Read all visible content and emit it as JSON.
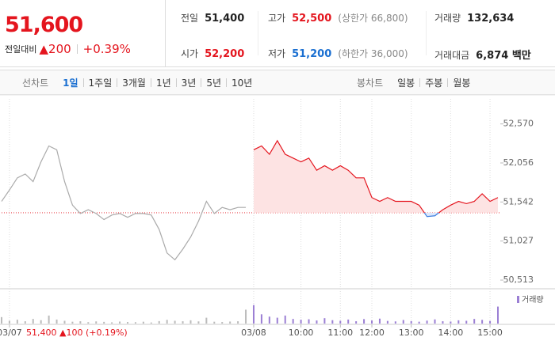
{
  "header": {
    "price": "51,600",
    "change_label": "전일대비",
    "change": "▲200",
    "change_rate": "+0.39%",
    "stats": [
      [
        {
          "label": "전일",
          "value": "51,400",
          "color": "#222222"
        },
        {
          "label": "고가",
          "value": "52,500",
          "note": "(상한가 66,800)",
          "color": "#e4151e"
        },
        {
          "label": "거래량",
          "value": "132,634",
          "color": "#222222"
        }
      ],
      [
        {
          "label": "시가",
          "value": "52,200",
          "color": "#e4151e"
        },
        {
          "label": "저가",
          "value": "51,200",
          "note": "(하한가 36,000)",
          "color": "#1a6fd1"
        },
        {
          "label": "거래대금",
          "value": "6,874 백만",
          "color": "#222222"
        }
      ]
    ]
  },
  "tabs": {
    "line": {
      "label": "선차트",
      "options": [
        "1일",
        "1주일",
        "3개월",
        "1년",
        "3년",
        "5년",
        "10년"
      ],
      "active": 0
    },
    "candle": {
      "label": "봉차트",
      "options": [
        "일봉",
        "주봉",
        "월봉"
      ]
    }
  },
  "chart_data": {
    "type": "line",
    "categories": [
      null,
      "03/07",
      null,
      null,
      null,
      null,
      null,
      null,
      null,
      null,
      null,
      null,
      null,
      null,
      null,
      null,
      null,
      null,
      null,
      null,
      null,
      null,
      null,
      null,
      null,
      null,
      null,
      null,
      null,
      null,
      null,
      null,
      "03/08",
      null,
      null,
      null,
      null,
      null,
      "10:00",
      null,
      null,
      null,
      null,
      "11:00",
      null,
      null,
      null,
      "12:00",
      null,
      null,
      null,
      null,
      "13:00",
      null,
      null,
      null,
      null,
      "14:00",
      null,
      null,
      null,
      null,
      "15:00",
      null
    ],
    "series": [
      {
        "color": "#aaaaaa",
        "values": [
          51550,
          51700,
          51860,
          51910,
          51810,
          52070,
          52280,
          52230,
          51810,
          51500,
          51390,
          51440,
          51390,
          51310,
          51370,
          51390,
          51340,
          51390,
          51390,
          51370,
          51180,
          50870,
          50780,
          50920,
          51080,
          51290,
          51550,
          51390,
          51470,
          51440,
          51470,
          51470,
          null,
          null,
          null,
          null,
          null,
          null,
          null,
          null,
          null,
          null,
          null,
          null,
          null,
          null,
          null,
          null,
          null,
          null,
          null,
          null,
          null,
          null,
          null,
          null,
          null,
          null,
          null,
          null,
          null,
          null,
          null,
          null
        ]
      },
      {
        "color": "#e4151e",
        "below_color": "#3b7de0",
        "fill": "#fde3e3",
        "below_fill": "#dde8fb",
        "values": [
          null,
          null,
          null,
          null,
          null,
          null,
          null,
          null,
          null,
          null,
          null,
          null,
          null,
          null,
          null,
          null,
          null,
          null,
          null,
          null,
          null,
          null,
          null,
          null,
          null,
          null,
          null,
          null,
          null,
          null,
          null,
          null,
          52230,
          52280,
          52170,
          52350,
          52170,
          52120,
          52070,
          52120,
          51960,
          52020,
          51960,
          52020,
          51960,
          51860,
          51860,
          51600,
          51550,
          51600,
          51550,
          51550,
          51550,
          51500,
          51350,
          51360,
          51440,
          51500,
          51550,
          51520,
          51550,
          51650,
          51550,
          51600
        ]
      },
      {
        "type": "bar",
        "axis": "y2",
        "color": "#bbbbbb",
        "values": [
          4200,
          1800,
          2500,
          1500,
          3000,
          2200,
          5200,
          2600,
          1800,
          1200,
          1500,
          900,
          1400,
          1100,
          800,
          1300,
          1000,
          900,
          1200,
          700,
          1600,
          2400,
          1800,
          1500,
          2100,
          1400,
          3800,
          1200,
          1000,
          1300,
          1500,
          9000,
          null,
          null,
          null,
          null,
          null,
          null,
          null,
          null,
          null,
          null,
          null,
          null,
          null,
          null,
          null,
          null,
          null,
          null,
          null,
          null,
          null,
          null,
          null,
          null,
          null,
          null,
          null,
          null,
          null,
          null,
          null,
          null
        ]
      },
      {
        "type": "bar",
        "axis": "y2",
        "name": "거래량",
        "color": "#9b7fd4",
        "values": [
          null,
          null,
          null,
          null,
          null,
          null,
          null,
          null,
          null,
          null,
          null,
          null,
          null,
          null,
          null,
          null,
          null,
          null,
          null,
          null,
          null,
          null,
          null,
          null,
          null,
          null,
          null,
          null,
          null,
          null,
          null,
          null,
          12000,
          6000,
          4500,
          3800,
          5200,
          3000,
          2500,
          2800,
          2000,
          3500,
          2200,
          1800,
          2600,
          1500,
          2900,
          2000,
          3200,
          1700,
          1400,
          2300,
          1600,
          1200,
          1900,
          2700,
          1500,
          1300,
          2100,
          1800,
          3000,
          2400,
          1700,
          11000
        ]
      }
    ],
    "reference_line": 51400,
    "prev_day_summary": "51,400 ▲100 (+0.19%)",
    "ylim": [
      50430,
      52900
    ],
    "yticks": [
      {
        "value": 52570,
        "label": "52,570"
      },
      {
        "value": 52056,
        "label": "52,056"
      },
      {
        "value": 51542,
        "label": "51,542"
      },
      {
        "value": 51027,
        "label": "51,027"
      },
      {
        "value": 50513,
        "label": "50,513"
      }
    ],
    "y2lim": [
      0,
      20000
    ],
    "x_grid": true
  }
}
